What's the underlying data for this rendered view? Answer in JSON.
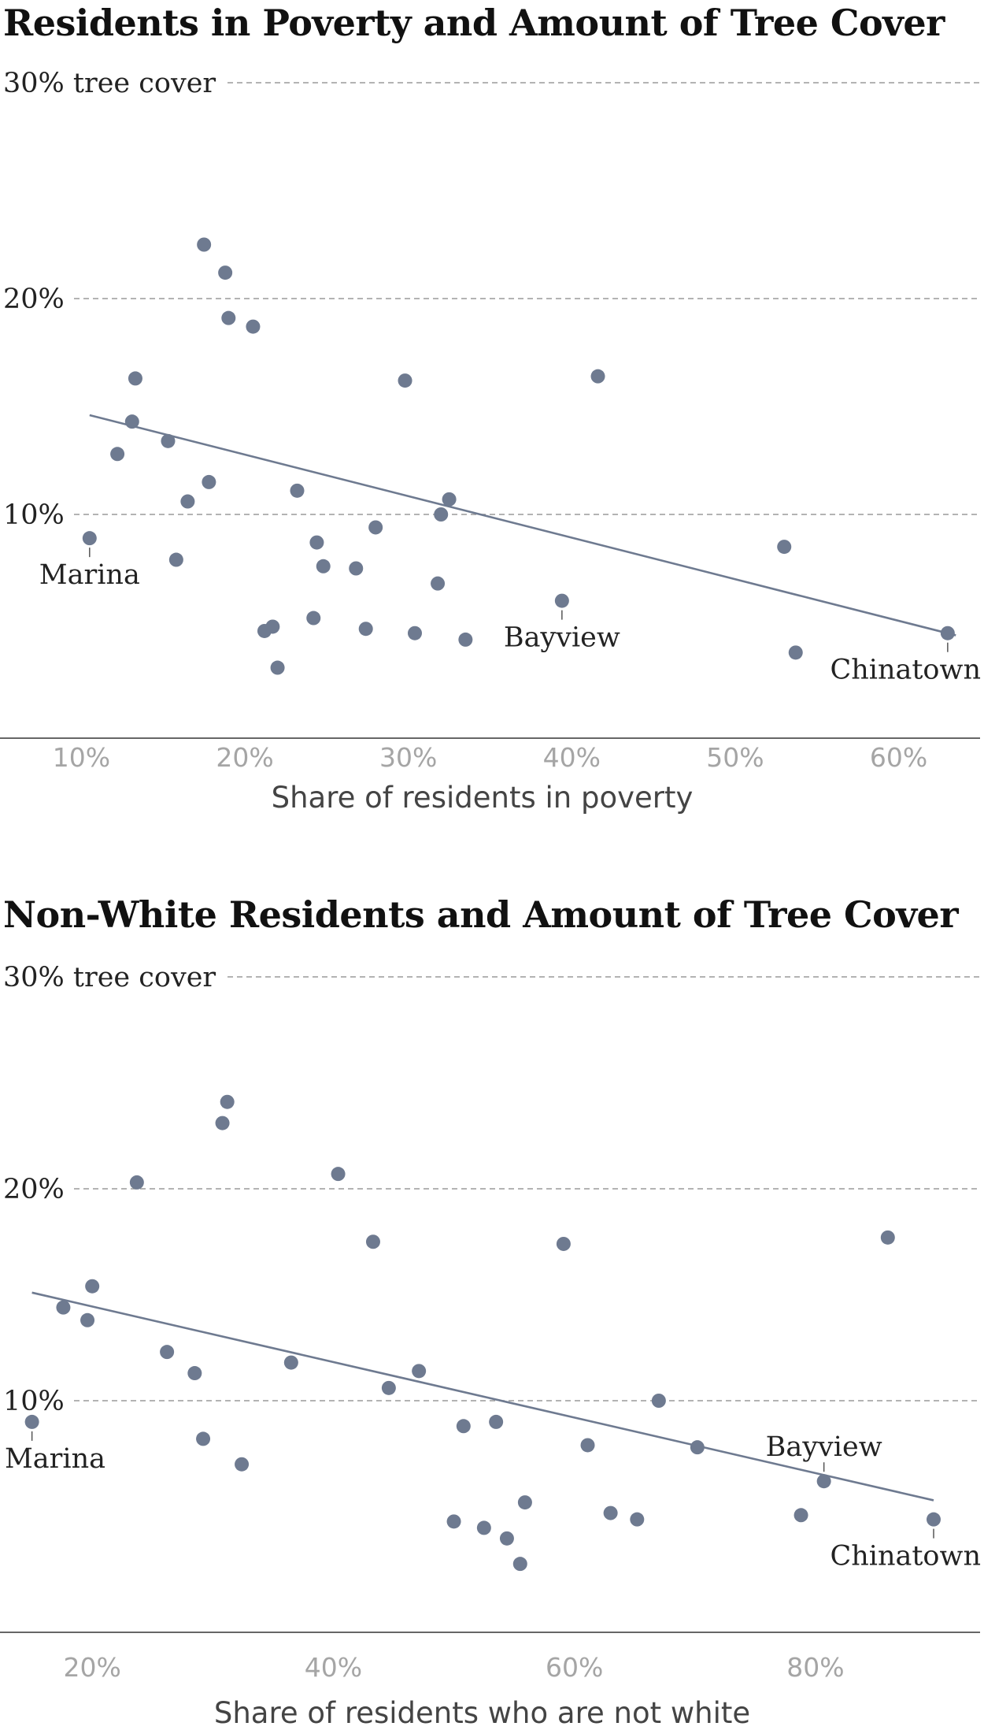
{
  "colors": {
    "dot": "#6e7a90",
    "trend": "#6e7a90",
    "grid": "#9a9a9a",
    "title": "#111111",
    "tick": "#a5a5a5"
  },
  "chart_data": [
    {
      "type": "scatter",
      "title": "Residents in Poverty and Amount of Tree Cover",
      "xlabel": "Share of residents in poverty",
      "ylabel": "",
      "xlim": [
        5.5,
        64.5
      ],
      "ylim": [
        0,
        30
      ],
      "x_ticks": [
        10,
        20,
        30,
        40,
        50,
        60
      ],
      "x_tick_labels": [
        "10%",
        "20%",
        "30%",
        "40%",
        "50%",
        "60%"
      ],
      "y_ticks": [
        10,
        20,
        30
      ],
      "y_tick_labels": [
        "10%",
        "20%",
        "30% tree cover"
      ],
      "grid": "horizontal dashed",
      "trendline": {
        "x": [
          10.5,
          63.5
        ],
        "y": [
          14.6,
          4.4
        ]
      },
      "points": [
        {
          "x": 10.5,
          "y": 8.9,
          "label": "Marina"
        },
        {
          "x": 12.2,
          "y": 12.8
        },
        {
          "x": 13.1,
          "y": 14.3
        },
        {
          "x": 13.3,
          "y": 16.3
        },
        {
          "x": 15.3,
          "y": 13.4
        },
        {
          "x": 15.8,
          "y": 7.9
        },
        {
          "x": 16.5,
          "y": 10.6
        },
        {
          "x": 17.5,
          "y": 22.5
        },
        {
          "x": 17.8,
          "y": 11.5
        },
        {
          "x": 18.8,
          "y": 21.2
        },
        {
          "x": 19.0,
          "y": 19.1
        },
        {
          "x": 20.5,
          "y": 18.7
        },
        {
          "x": 21.2,
          "y": 4.6
        },
        {
          "x": 21.7,
          "y": 4.8
        },
        {
          "x": 22.0,
          "y": 2.9
        },
        {
          "x": 23.2,
          "y": 11.1
        },
        {
          "x": 24.2,
          "y": 5.2
        },
        {
          "x": 24.4,
          "y": 8.7
        },
        {
          "x": 24.8,
          "y": 7.6
        },
        {
          "x": 26.8,
          "y": 7.5
        },
        {
          "x": 27.4,
          "y": 4.7
        },
        {
          "x": 28.0,
          "y": 9.4
        },
        {
          "x": 29.8,
          "y": 16.2
        },
        {
          "x": 30.4,
          "y": 4.5
        },
        {
          "x": 31.8,
          "y": 6.8
        },
        {
          "x": 32.0,
          "y": 10.0
        },
        {
          "x": 32.5,
          "y": 10.7
        },
        {
          "x": 33.5,
          "y": 4.2
        },
        {
          "x": 39.4,
          "y": 6.0,
          "label": "Bayview"
        },
        {
          "x": 41.6,
          "y": 16.4
        },
        {
          "x": 53.0,
          "y": 8.5
        },
        {
          "x": 53.7,
          "y": 3.6
        },
        {
          "x": 63.0,
          "y": 4.5,
          "label": "Chinatown"
        }
      ]
    },
    {
      "type": "scatter",
      "title": "Non-White Residents and Amount of Tree Cover",
      "xlabel": "Share of residents who are not white",
      "ylabel": "",
      "xlim": [
        13,
        93
      ],
      "ylim": [
        0,
        30
      ],
      "x_ticks": [
        20,
        40,
        60,
        80
      ],
      "x_tick_labels": [
        "20%",
        "40%",
        "60%",
        "80%"
      ],
      "y_ticks": [
        10,
        20,
        30
      ],
      "y_tick_labels": [
        "10%",
        "20%",
        "30% tree cover"
      ],
      "grid": "horizontal dashed",
      "trendline": {
        "x": [
          15.0,
          89.8
        ],
        "y": [
          15.1,
          5.3
        ]
      },
      "points": [
        {
          "x": 15.0,
          "y": 9.0,
          "label": "Marina"
        },
        {
          "x": 17.6,
          "y": 14.4
        },
        {
          "x": 19.6,
          "y": 13.8
        },
        {
          "x": 20.0,
          "y": 15.4
        },
        {
          "x": 23.7,
          "y": 20.3
        },
        {
          "x": 26.2,
          "y": 12.3
        },
        {
          "x": 28.5,
          "y": 11.3
        },
        {
          "x": 29.2,
          "y": 8.2
        },
        {
          "x": 30.8,
          "y": 23.1
        },
        {
          "x": 31.2,
          "y": 24.1
        },
        {
          "x": 32.4,
          "y": 7.0
        },
        {
          "x": 36.5,
          "y": 11.8
        },
        {
          "x": 40.4,
          "y": 20.7
        },
        {
          "x": 43.3,
          "y": 17.5
        },
        {
          "x": 44.6,
          "y": 10.6
        },
        {
          "x": 47.1,
          "y": 11.4
        },
        {
          "x": 50.0,
          "y": 4.3
        },
        {
          "x": 50.8,
          "y": 8.8
        },
        {
          "x": 52.5,
          "y": 4.0
        },
        {
          "x": 53.5,
          "y": 9.0
        },
        {
          "x": 54.4,
          "y": 3.5
        },
        {
          "x": 55.5,
          "y": 2.3
        },
        {
          "x": 55.9,
          "y": 5.2
        },
        {
          "x": 59.1,
          "y": 17.4
        },
        {
          "x": 61.1,
          "y": 7.9
        },
        {
          "x": 63.0,
          "y": 4.7
        },
        {
          "x": 65.2,
          "y": 4.4
        },
        {
          "x": 67.0,
          "y": 10.0
        },
        {
          "x": 70.2,
          "y": 7.8
        },
        {
          "x": 78.8,
          "y": 4.6
        },
        {
          "x": 80.7,
          "y": 6.2,
          "label": "Bayview"
        },
        {
          "x": 86.0,
          "y": 17.7
        },
        {
          "x": 89.8,
          "y": 4.4,
          "label": "Chinatown"
        }
      ]
    }
  ]
}
